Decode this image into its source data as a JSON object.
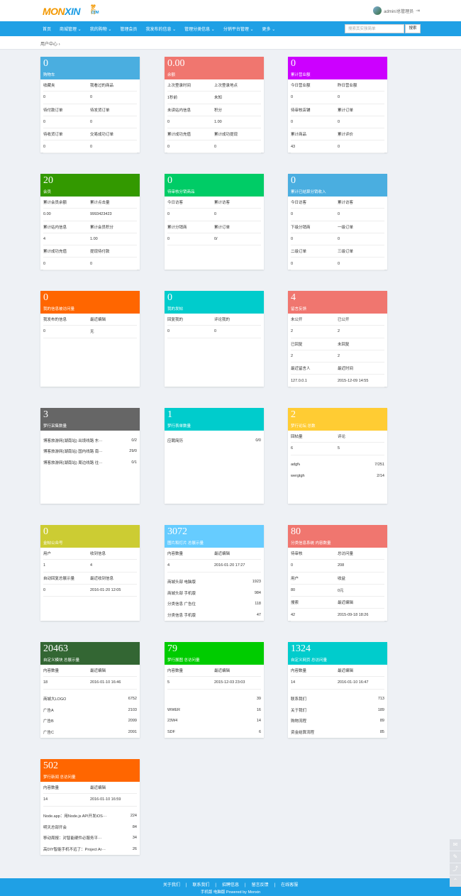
{
  "header": {
    "logo_main": "MONXIN",
    "logo_cn": "梦行",
    "logo_com": ".COM",
    "user": "admin/总管理员"
  },
  "nav": {
    "items": [
      "首页",
      "商城管理 ⌄",
      "我的购物 ⌄",
      "管理会员",
      "我发布的信息 ⌄",
      "管理分类信息 ⌄",
      "分销平台管理 ⌄",
      "更多 ⌄"
    ],
    "search_placeholder": "搜索其实强简单",
    "search_button": "搜索"
  },
  "breadcrumb": "用户中心 ›",
  "cards": [
    {
      "num": "0",
      "sub": "购物车",
      "color": "#4aaee0",
      "type": "grid",
      "rows": [
        [
          "收藏夹",
          "我看过的商品"
        ],
        [
          "0",
          "0"
        ],
        [
          "待付款订单",
          "待发货订单"
        ],
        [
          "0",
          "0"
        ],
        [
          "待收货订单",
          "交易成功订单"
        ],
        [
          "0",
          "0"
        ]
      ]
    },
    {
      "num": "0.00",
      "sub": "余额",
      "color": "#f0766f",
      "type": "grid",
      "rows": [
        [
          "上次登录时间",
          "上次登录地点"
        ],
        [
          "1秒前",
          "未知"
        ],
        [
          "未读站内信息",
          "积分"
        ],
        [
          "0",
          "1.00"
        ],
        [
          "累计成功充值",
          "累计成功提现"
        ],
        [
          "0",
          "0"
        ]
      ]
    },
    {
      "num": "0",
      "sub": "累计营业额",
      "color": "#cc00ff",
      "type": "grid",
      "rows": [
        [
          "今日营业额",
          "昨日营业额"
        ],
        [
          "0",
          "0"
        ],
        [
          "待审核店铺",
          "累计订单"
        ],
        [
          "0",
          "0"
        ],
        [
          "累计商品",
          "累计评价"
        ],
        [
          "43",
          "0"
        ]
      ]
    },
    {
      "num": "20",
      "sub": "会员",
      "color": "#339900",
      "type": "grid",
      "rows": [
        [
          "累计会员余额",
          "累计点击量"
        ],
        [
          "0.00",
          "9993423423"
        ],
        [
          "累计站内信息",
          "累计会员积分"
        ],
        [
          "4",
          "1.00"
        ],
        [
          "累计成功充值",
          "提现待付款"
        ],
        [
          "0",
          "0"
        ]
      ]
    },
    {
      "num": "0",
      "sub": "待审核分销商品",
      "color": "#00cc66",
      "type": "grid",
      "rows": [
        [
          "今日访客",
          "累计访客"
        ],
        [
          "0",
          "0"
        ],
        [
          "累计分销商",
          "累计订单"
        ],
        [
          "0",
          "0/"
        ]
      ]
    },
    {
      "num": "0",
      "sub": "累计已结算分销收入",
      "color": "#4aaee0",
      "type": "grid",
      "rows": [
        [
          "今日访客",
          "累计访客"
        ],
        [
          "0",
          "0"
        ],
        [
          "下级分销商",
          "一级订单"
        ],
        [
          "0",
          "0"
        ],
        [
          "二级订单",
          "三级订单"
        ],
        [
          "0",
          "0"
        ]
      ]
    },
    {
      "num": "0",
      "sub": "我的信息被访问量",
      "color": "#ff6600",
      "type": "grid",
      "rows": [
        [
          "我发布的信息",
          "最近编辑"
        ],
        [
          "0",
          "无"
        ]
      ]
    },
    {
      "num": "0",
      "sub": "我的发帖",
      "color": "#00cccc",
      "type": "grid",
      "rows": [
        [
          "回复我的",
          "评论我的"
        ],
        [
          "0",
          "0"
        ]
      ]
    },
    {
      "num": "4",
      "sub": "留言反馈",
      "color": "#f0766f",
      "type": "grid",
      "rows": [
        [
          "未公开",
          "已公开"
        ],
        [
          "2",
          "2"
        ],
        [
          "已回复",
          "未回复"
        ],
        [
          "2",
          "2"
        ],
        [
          "最近留言人",
          "最近时间"
        ],
        [
          "127.0.0.1",
          "2015-12-09 14:55"
        ]
      ]
    },
    {
      "num": "3",
      "sub": "梦行采集数量",
      "color": "#666666",
      "type": "list",
      "list": [
        [
          "博客旅游网(湖南站) 出境线路 东···",
          "0/2"
        ],
        [
          "博客旅游网(湖南站) 国内线路 南···",
          "29/0"
        ],
        [
          "博客旅游网(湖南站) 周边线路 往···",
          "0/1"
        ]
      ]
    },
    {
      "num": "1",
      "sub": "梦行表单数量",
      "color": "#00cccc",
      "type": "list",
      "list": [
        [
          "应聘简历",
          "0/0"
        ]
      ]
    },
    {
      "num": "2",
      "sub": "梦行论坛 总数",
      "color": "#ffcc33",
      "type": "mixed",
      "rows": [
        [
          "回帖量",
          "评论"
        ],
        [
          "6",
          "5"
        ]
      ],
      "list": [
        [
          "adgfv",
          "7/251"
        ],
        [
          "wergtgh",
          "2/14"
        ]
      ]
    },
    {
      "num": "0",
      "sub": "金帖公众号",
      "color": "#cccc33",
      "type": "grid",
      "rows": [
        [
          "用户",
          "收到信息"
        ],
        [
          "1",
          "4"
        ],
        [
          "自动回复总展示量",
          "最近收到信息"
        ],
        [
          "0",
          "2016-01-20 12:05"
        ]
      ]
    },
    {
      "num": "3072",
      "sub": "图片和灯片 总展示量",
      "color": "#66ccff",
      "type": "mixed",
      "rows": [
        [
          "内容数量",
          "最近编辑"
        ],
        [
          "4",
          "2016-01-20 17:27"
        ]
      ],
      "list": [
        [
          "商城头部 电脑版",
          "1923"
        ],
        [
          "商城头部 手机版",
          "984"
        ],
        [
          "分类信息 广告位",
          "118"
        ],
        [
          "分类信息 手机版",
          "47"
        ]
      ]
    },
    {
      "num": "80",
      "sub": "分类信息系统 内容数量",
      "color": "#f0766f",
      "type": "grid",
      "rows": [
        [
          "待审核",
          "总访问量"
        ],
        [
          "0",
          "208"
        ],
        [
          "用户",
          "收益"
        ],
        [
          "80",
          "0元"
        ],
        [
          "搜索",
          "最近编辑"
        ],
        [
          "42",
          "2015-09-18 18:26"
        ]
      ]
    },
    {
      "num": "20463",
      "sub": "自定义模块 总展示量",
      "color": "#336633",
      "type": "mixed",
      "rows": [
        [
          "内容数量",
          "最近编辑"
        ],
        [
          "18",
          "2016-01-10 16:46"
        ]
      ],
      "list": [
        [
          "商城大LOGO",
          "6752"
        ],
        [
          "广告A",
          "2103"
        ],
        [
          "广告B",
          "2099"
        ],
        [
          "广告C",
          "2091"
        ]
      ]
    },
    {
      "num": "79",
      "sub": "梦行展图 总访问量",
      "color": "#00cc00",
      "type": "mixed",
      "rows": [
        [
          "内容数量",
          "最近编辑"
        ],
        [
          "5",
          "2015-12-03 23:03"
        ]
      ],
      "list": [
        [
          "",
          "39"
        ],
        [
          "WWER",
          "16"
        ],
        [
          "23W4",
          "14"
        ],
        [
          "SDF",
          "6"
        ]
      ]
    },
    {
      "num": "1324",
      "sub": "自定义网页 总访问量",
      "color": "#00cccc",
      "type": "mixed",
      "rows": [
        [
          "内容数量",
          "最近编辑"
        ],
        [
          "14",
          "2016-01-10 16:47"
        ]
      ],
      "list": [
        [
          "联系我们",
          "713"
        ],
        [
          "关于我们",
          "189"
        ],
        [
          "购物流程",
          "89"
        ],
        [
          "资金结算流程",
          "85"
        ]
      ]
    },
    {
      "num": "502",
      "sub": "梦行新闻 总访问量",
      "color": "#ff6600",
      "type": "mixed",
      "rows": [
        [
          "内容数量",
          "最近编辑"
        ],
        [
          "14",
          "2016-01-10 16:59"
        ]
      ],
      "list": [
        [
          "Node.app：用Node.js API开发iOS···",
          "224"
        ],
        [
          "明天总部开会",
          "84"
        ],
        [
          "移动周报：对智能硬件必服务平···",
          "34"
        ],
        [
          "高DIY智能手机不远了：Project Ar···",
          "26"
        ]
      ]
    }
  ],
  "footer": {
    "links": [
      "关于我们",
      "|",
      "联系我们",
      "|",
      "招聘信息",
      "|",
      "留言反馈",
      "|",
      "在线客服"
    ],
    "bottom": "手机版  电脑版  Powered by Monxin"
  }
}
